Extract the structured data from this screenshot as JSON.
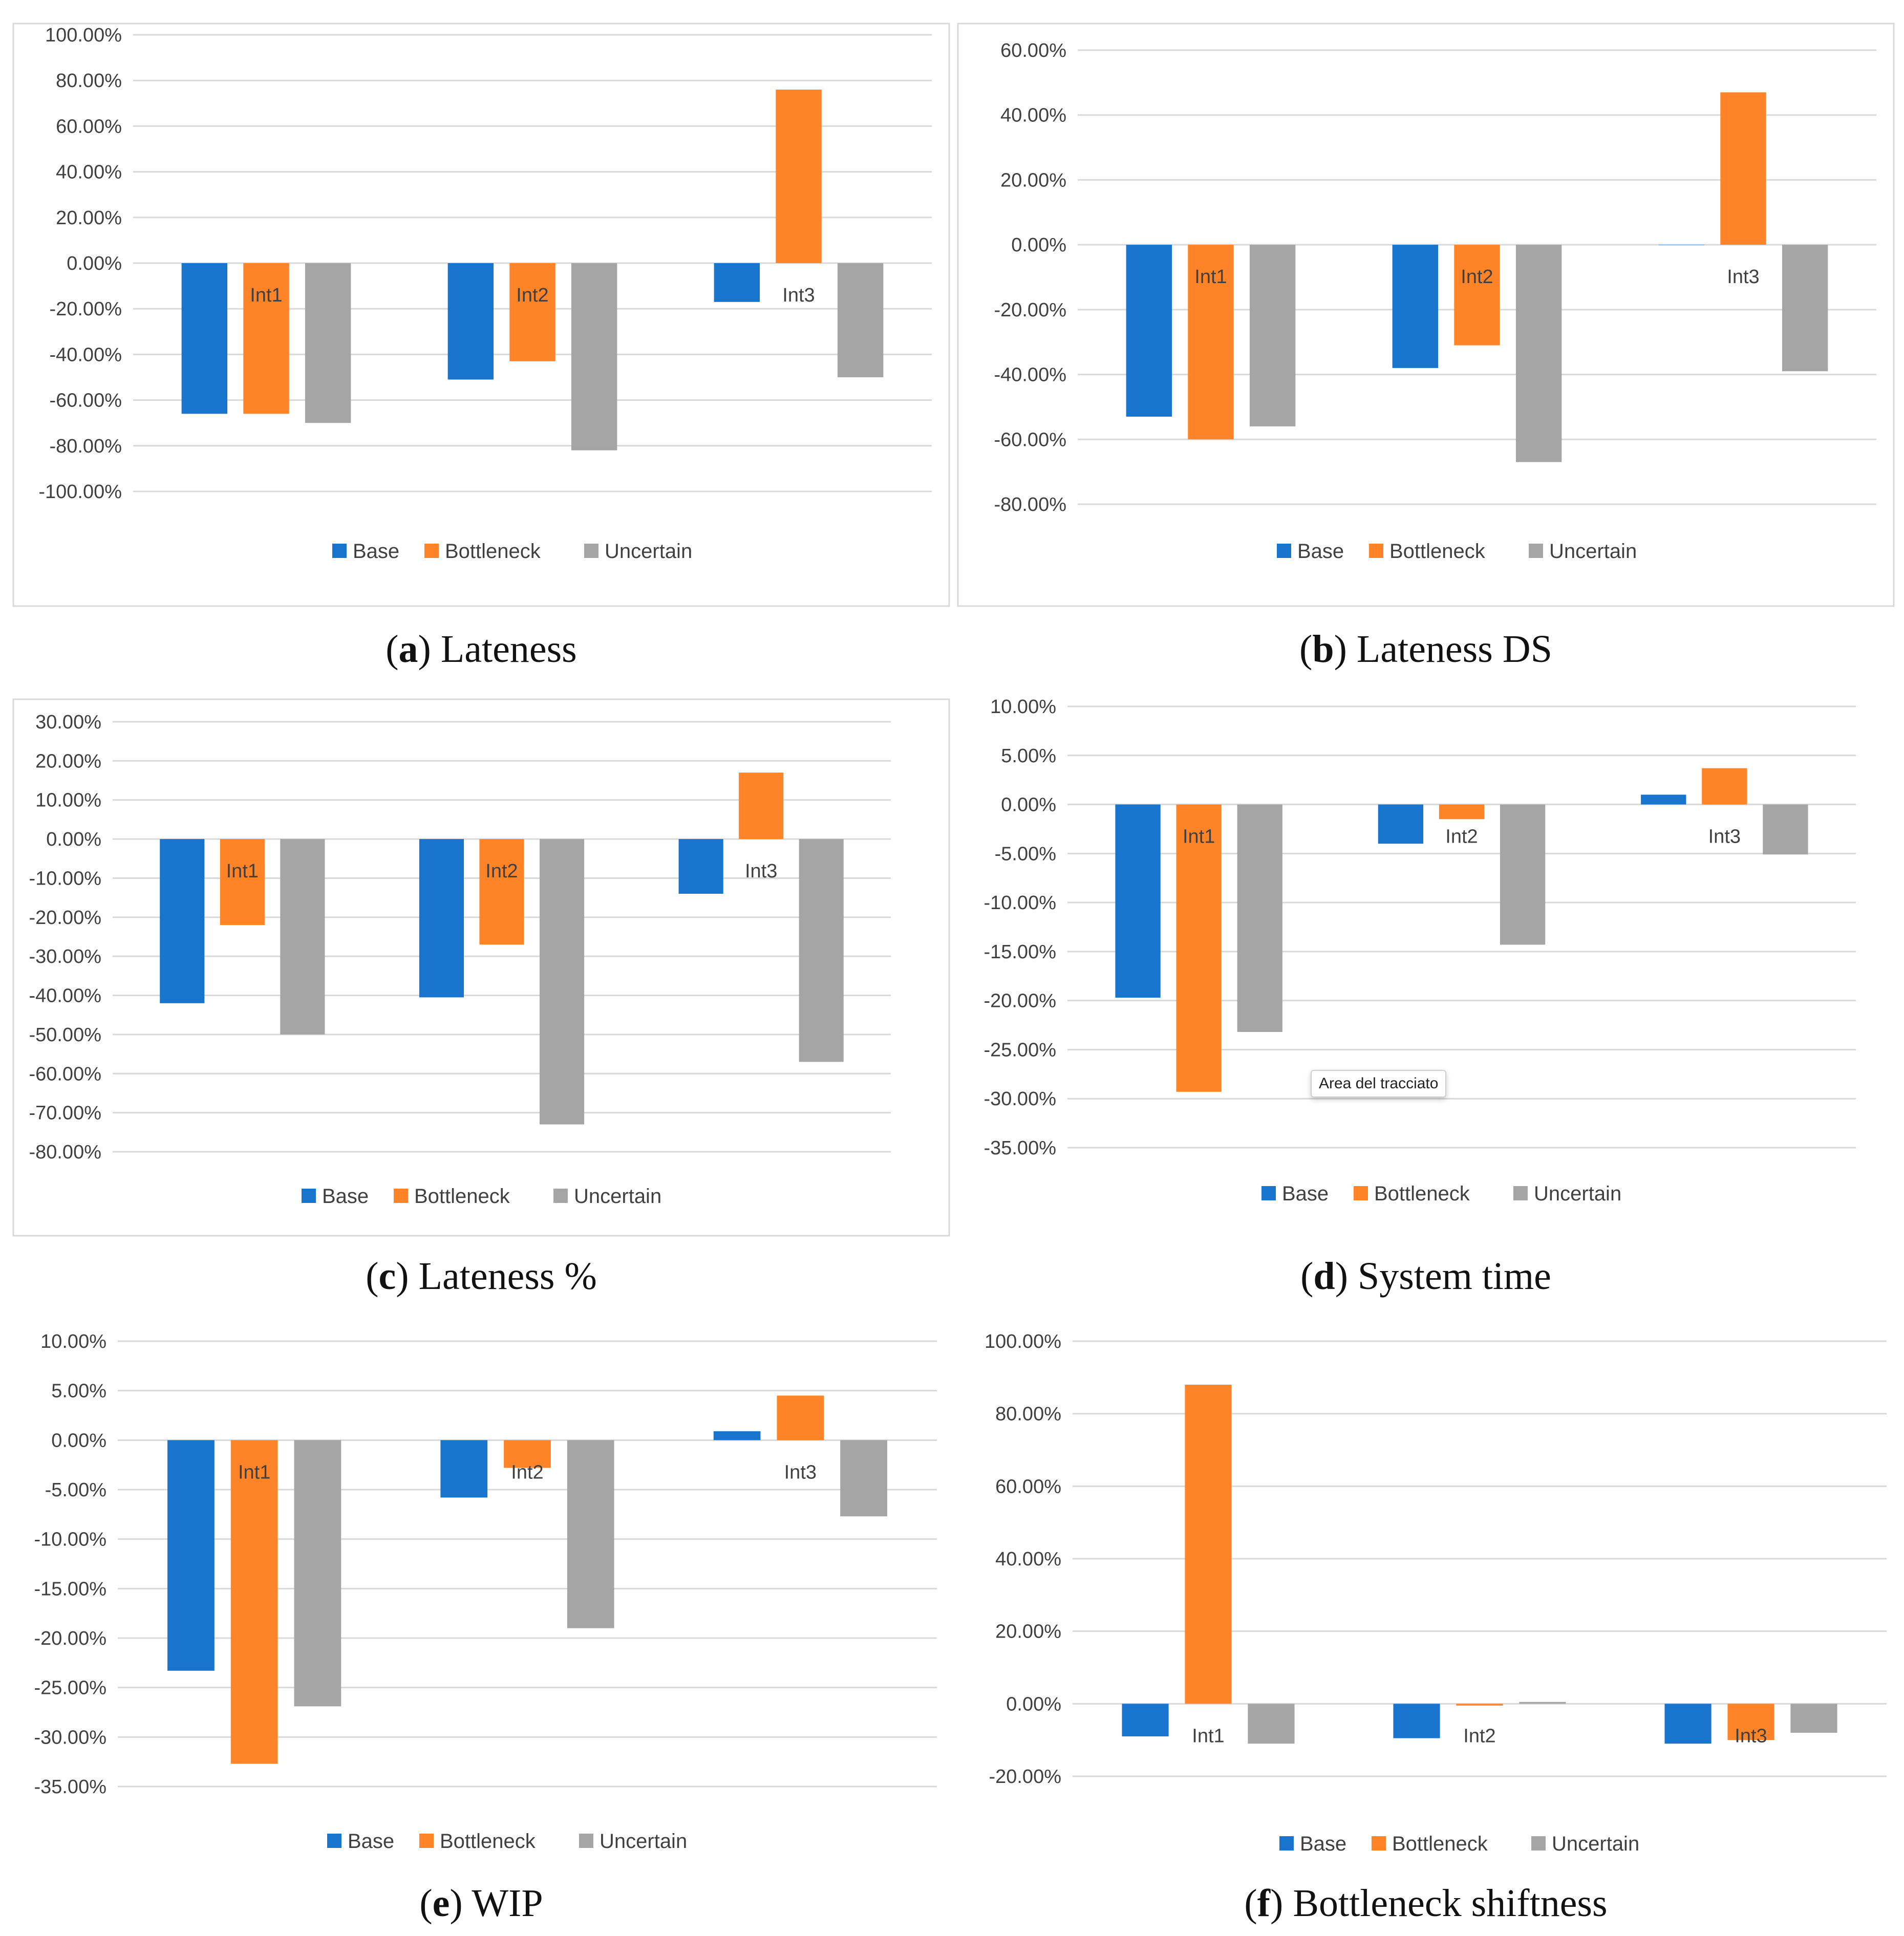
{
  "colors": {
    "Base": "#1874CD",
    "Bottleneck": "#FF8427",
    "Uncertain": "#A5A5A5"
  },
  "tooltip": "Area del tracciato",
  "chart_data": [
    {
      "id": "a",
      "type": "bar",
      "caption_letter": "a",
      "caption_text": "Lateness",
      "categories": [
        "Int1",
        "Int2",
        "Int3"
      ],
      "series": [
        {
          "name": "Base",
          "values": [
            -66,
            -51,
            -17
          ]
        },
        {
          "name": "Bottleneck",
          "values": [
            -66,
            -43,
            76
          ]
        },
        {
          "name": "Uncertain",
          "values": [
            -70,
            -82,
            -50
          ]
        }
      ],
      "ylim": [
        -100,
        100
      ],
      "tick_step": 20,
      "decimals": 2
    },
    {
      "id": "b",
      "type": "bar",
      "caption_letter": "b",
      "caption_text": "Lateness DS",
      "categories": [
        "Int1",
        "Int2",
        "Int3"
      ],
      "series": [
        {
          "name": "Base",
          "values": [
            -53,
            -38,
            0
          ]
        },
        {
          "name": "Bottleneck",
          "values": [
            -60,
            -31,
            47
          ]
        },
        {
          "name": "Uncertain",
          "values": [
            -56,
            -67,
            -39
          ]
        }
      ],
      "ylim": [
        -80,
        60
      ],
      "tick_step": 20,
      "decimals": 2
    },
    {
      "id": "c",
      "type": "bar",
      "caption_letter": "c",
      "caption_text": "Lateness %",
      "categories": [
        "Int1",
        "Int2",
        "Int3"
      ],
      "series": [
        {
          "name": "Base",
          "values": [
            -42,
            -40.5,
            -14
          ]
        },
        {
          "name": "Bottleneck",
          "values": [
            -22,
            -27,
            17
          ]
        },
        {
          "name": "Uncertain",
          "values": [
            -50,
            -73,
            -57
          ]
        }
      ],
      "ylim": [
        -80,
        30
      ],
      "tick_step": 10,
      "decimals": 2
    },
    {
      "id": "d",
      "type": "bar",
      "caption_letter": "d",
      "caption_text": "System time",
      "categories": [
        "Int1",
        "Int2",
        "Int3"
      ],
      "series": [
        {
          "name": "Base",
          "values": [
            -19.7,
            -4,
            1
          ]
        },
        {
          "name": "Bottleneck",
          "values": [
            -29.3,
            -1.5,
            3.7
          ]
        },
        {
          "name": "Uncertain",
          "values": [
            -23.2,
            -14.3,
            -5.1
          ]
        }
      ],
      "ylim": [
        -35,
        10
      ],
      "tick_step": 5,
      "decimals": 2
    },
    {
      "id": "e",
      "type": "bar",
      "caption_letter": "e",
      "caption_text": "WIP",
      "categories": [
        "Int1",
        "Int2",
        "Int3"
      ],
      "series": [
        {
          "name": "Base",
          "values": [
            -23.3,
            -5.8,
            0.9
          ]
        },
        {
          "name": "Bottleneck",
          "values": [
            -32.7,
            -2.8,
            4.5
          ]
        },
        {
          "name": "Uncertain",
          "values": [
            -26.9,
            -19,
            -7.7
          ]
        }
      ],
      "ylim": [
        -35,
        10
      ],
      "tick_step": 5,
      "decimals": 2
    },
    {
      "id": "f",
      "type": "bar",
      "caption_letter": "f",
      "caption_text": "Bottleneck shiftness",
      "categories": [
        "Int1",
        "Int2",
        "Int3"
      ],
      "series": [
        {
          "name": "Base",
          "values": [
            -9,
            -9.5,
            -11
          ]
        },
        {
          "name": "Bottleneck",
          "values": [
            88,
            -0.5,
            -10
          ]
        },
        {
          "name": "Uncertain",
          "values": [
            -11,
            0.5,
            -8
          ]
        }
      ],
      "ylim": [
        -20,
        100
      ],
      "tick_step": 20,
      "decimals": 2
    }
  ]
}
